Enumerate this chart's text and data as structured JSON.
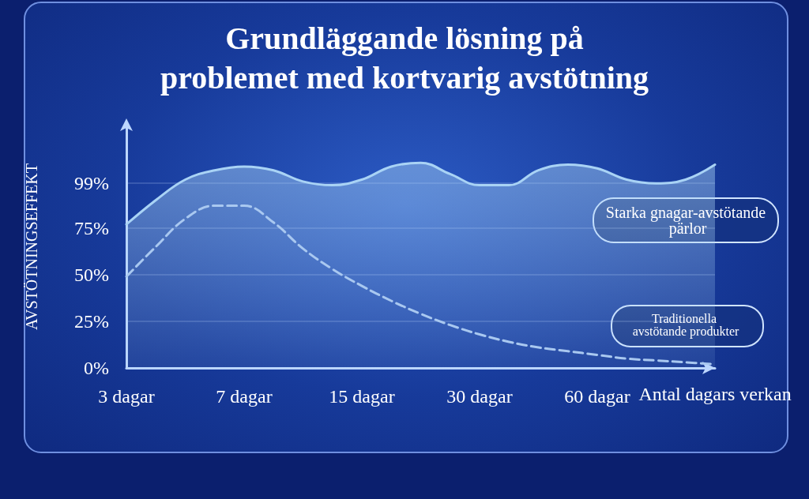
{
  "chart_data": {
    "type": "line",
    "title": "Grundläggande lösning på\nproblemet med kortvarig avstötning",
    "xlabel": "Antal dagars verkan",
    "ylabel": "AVSTÖTNINGSEFFEKT",
    "categories": [
      "3 dagar",
      null,
      null,
      null,
      "7 dagar",
      null,
      null,
      null,
      "15 dagar",
      null,
      null,
      null,
      "30 dagar",
      null,
      null,
      null,
      "60 dagar",
      null,
      null,
      null,
      null
    ],
    "ylim": [
      0,
      130
    ],
    "yticks": [
      {
        "value": 0,
        "label": "0%"
      },
      {
        "value": 25,
        "label": "25%"
      },
      {
        "value": 50,
        "label": "50%"
      },
      {
        "value": 75,
        "label": "75%"
      },
      {
        "value": 99,
        "label": "99%"
      }
    ],
    "grid": "y",
    "legend": false,
    "series": [
      {
        "name": "Starka gnagar-avstötande pärlor",
        "type": "area",
        "color": "#a9d3f5",
        "line_style": "solid",
        "values": [
          77,
          90,
          101,
          106,
          108,
          106,
          100,
          98,
          101,
          108,
          110,
          104,
          98,
          98,
          106,
          109,
          107,
          101,
          99,
          101,
          109
        ]
      },
      {
        "name": "Traditionella avstötande produkter",
        "color": "#a9c8f0",
        "line_style": "dashed",
        "values": [
          49,
          65,
          80,
          87,
          87,
          78,
          64,
          53,
          44,
          36,
          29,
          23,
          18,
          14,
          11,
          9,
          7,
          5,
          4,
          3,
          2
        ]
      }
    ]
  }
}
